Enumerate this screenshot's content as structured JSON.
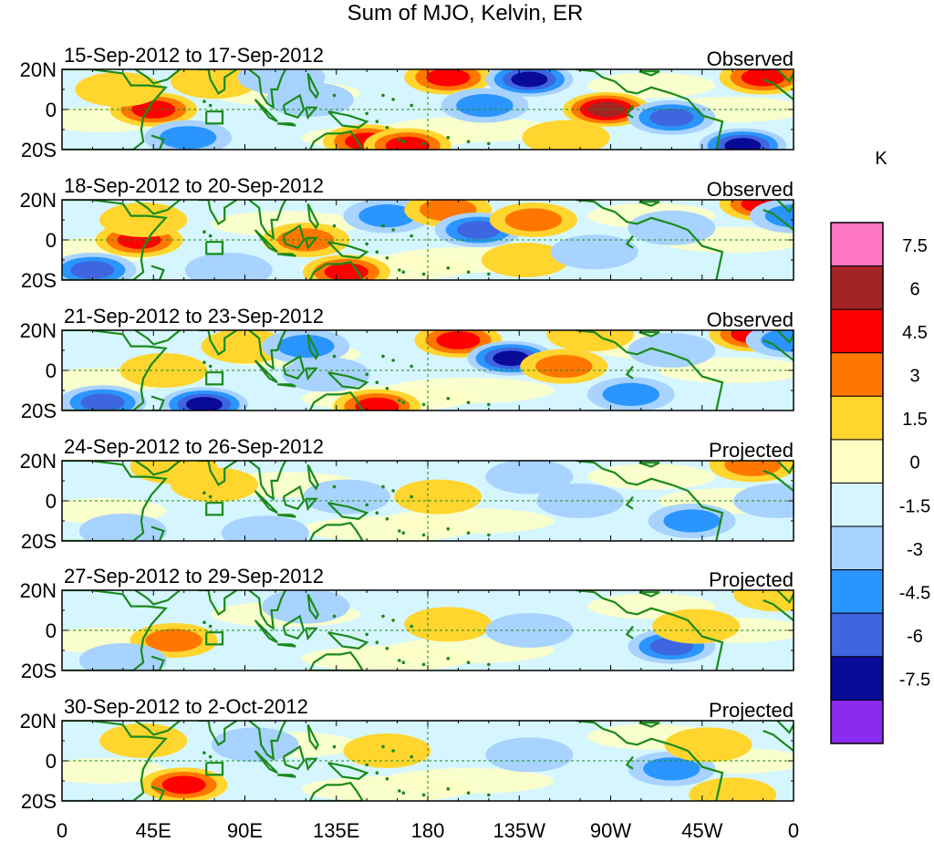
{
  "figure": {
    "title": "Sum of MJO, Kelvin, ER",
    "variable_unit": "K"
  },
  "panels": [
    {
      "date_range": "15-Sep-2012 to 17-Sep-2012",
      "status": "Observed"
    },
    {
      "date_range": "18-Sep-2012 to 20-Sep-2012",
      "status": "Observed"
    },
    {
      "date_range": "21-Sep-2012 to 23-Sep-2012",
      "status": "Observed"
    },
    {
      "date_range": "24-Sep-2012 to 26-Sep-2012",
      "status": "Projected"
    },
    {
      "date_range": "27-Sep-2012 to 29-Sep-2012",
      "status": "Projected"
    },
    {
      "date_range": "30-Sep-2012 to 2-Oct-2012",
      "status": "Projected"
    }
  ],
  "y_tick_labels": [
    "20N",
    "0",
    "20S"
  ],
  "x_tick_labels": [
    "0",
    "45E",
    "90E",
    "135E",
    "180",
    "135W",
    "90W",
    "45W",
    "0"
  ],
  "colorbar": {
    "unit": "K",
    "labels": [
      "7.5",
      "6",
      "4.5",
      "3",
      "1.5",
      "0",
      "-1.5",
      "-3",
      "-4.5",
      "-6",
      "-7.5"
    ],
    "colors": [
      "#ff77c4",
      "#a32424",
      "#ff0000",
      "#ff7700",
      "#ffd52e",
      "#ffffc4",
      "#d6f6ff",
      "#a8d3ff",
      "#2b95ff",
      "#3d66e0",
      "#0a0a99",
      "#8a2bf0"
    ]
  },
  "land_color": "#1a8a1a",
  "anomalies": [
    [
      {
        "lon": 45,
        "lat": 0,
        "v": 5.5
      },
      {
        "lon": 28,
        "lat": 10,
        "v": 2.5
      },
      {
        "lon": 75,
        "lat": 14,
        "v": 2.5
      },
      {
        "lon": 62,
        "lat": -14,
        "v": -3.5
      },
      {
        "lon": 108,
        "lat": 16,
        "v": -2.5
      },
      {
        "lon": 150,
        "lat": -16,
        "v": 5.5
      },
      {
        "lon": 170,
        "lat": -18,
        "v": 5.5
      },
      {
        "lon": 190,
        "lat": 16,
        "v": 4.5
      },
      {
        "lon": 230,
        "lat": 15,
        "v": -7.0
      },
      {
        "lon": 208,
        "lat": 2,
        "v": -3
      },
      {
        "lon": 268,
        "lat": 0,
        "v": 6
      },
      {
        "lon": 300,
        "lat": -4,
        "v": -4.5
      },
      {
        "lon": 335,
        "lat": -18,
        "v": -6
      },
      {
        "lon": 345,
        "lat": 16,
        "v": 4.5
      },
      {
        "lon": 122,
        "lat": 5,
        "v": -2
      },
      {
        "lon": 248,
        "lat": -14,
        "v": 2.5
      }
    ],
    [
      {
        "lon": 38,
        "lat": 0,
        "v": 4.5
      },
      {
        "lon": 15,
        "lat": -15,
        "v": -4.5
      },
      {
        "lon": 40,
        "lat": 10,
        "v": 2.5
      },
      {
        "lon": 120,
        "lat": 0,
        "v": 3
      },
      {
        "lon": 140,
        "lat": -16,
        "v": 5.5
      },
      {
        "lon": 160,
        "lat": 12,
        "v": -3
      },
      {
        "lon": 190,
        "lat": 15,
        "v": 4
      },
      {
        "lon": 205,
        "lat": 5,
        "v": -5
      },
      {
        "lon": 232,
        "lat": 10,
        "v": 3.5
      },
      {
        "lon": 228,
        "lat": -10,
        "v": 2.5
      },
      {
        "lon": 262,
        "lat": -6,
        "v": -2.5
      },
      {
        "lon": 345,
        "lat": 18,
        "v": 5.5
      },
      {
        "lon": 360,
        "lat": 12,
        "v": -3.5
      },
      {
        "lon": 300,
        "lat": 6,
        "v": -2
      },
      {
        "lon": 82,
        "lat": -15,
        "v": -2
      }
    ],
    [
      {
        "lon": 20,
        "lat": -16,
        "v": -4.5
      },
      {
        "lon": 50,
        "lat": 0,
        "v": 2.5
      },
      {
        "lon": 70,
        "lat": -17,
        "v": -6.5
      },
      {
        "lon": 90,
        "lat": 12,
        "v": 2.5
      },
      {
        "lon": 120,
        "lat": 12,
        "v": -4
      },
      {
        "lon": 155,
        "lat": -18,
        "v": 4.5
      },
      {
        "lon": 195,
        "lat": 15,
        "v": 4.5
      },
      {
        "lon": 221,
        "lat": 6,
        "v": -7
      },
      {
        "lon": 247,
        "lat": 2,
        "v": 4
      },
      {
        "lon": 260,
        "lat": 18,
        "v": 2.5
      },
      {
        "lon": 280,
        "lat": -12,
        "v": -3
      },
      {
        "lon": 340,
        "lat": 18,
        "v": 5
      },
      {
        "lon": 358,
        "lat": 15,
        "v": -3.5
      },
      {
        "lon": 300,
        "lat": 10,
        "v": -2
      },
      {
        "lon": 130,
        "lat": -2,
        "v": -2
      }
    ],
    [
      {
        "lon": 30,
        "lat": -15,
        "v": -2
      },
      {
        "lon": 55,
        "lat": 17,
        "v": 2.5
      },
      {
        "lon": 100,
        "lat": -16,
        "v": -2
      },
      {
        "lon": 140,
        "lat": 2,
        "v": -1.8
      },
      {
        "lon": 185,
        "lat": 2,
        "v": 2
      },
      {
        "lon": 230,
        "lat": 12,
        "v": -1.8
      },
      {
        "lon": 255,
        "lat": 0,
        "v": -1.8
      },
      {
        "lon": 310,
        "lat": -10,
        "v": -3
      },
      {
        "lon": 340,
        "lat": 18,
        "v": 4
      },
      {
        "lon": 352,
        "lat": 0,
        "v": -1.8
      },
      {
        "lon": 75,
        "lat": 8,
        "v": 1.6
      }
    ],
    [
      {
        "lon": 55,
        "lat": -5,
        "v": 3
      },
      {
        "lon": 30,
        "lat": -15,
        "v": -1.8
      },
      {
        "lon": 190,
        "lat": 3,
        "v": 2
      },
      {
        "lon": 230,
        "lat": 0,
        "v": -1.8
      },
      {
        "lon": 300,
        "lat": -8,
        "v": -4.5
      },
      {
        "lon": 312,
        "lat": 2,
        "v": 2.8
      },
      {
        "lon": 120,
        "lat": 12,
        "v": -1.8
      },
      {
        "lon": 352,
        "lat": 18,
        "v": 1.6
      }
    ],
    [
      {
        "lon": 60,
        "lat": -12,
        "v": 4.5
      },
      {
        "lon": 95,
        "lat": 8,
        "v": -1.8
      },
      {
        "lon": 160,
        "lat": 5,
        "v": 1.6
      },
      {
        "lon": 230,
        "lat": 3,
        "v": -1.8
      },
      {
        "lon": 300,
        "lat": -4,
        "v": -3
      },
      {
        "lon": 318,
        "lat": 8,
        "v": 2.5
      },
      {
        "lon": 330,
        "lat": -17,
        "v": 2.8
      },
      {
        "lon": 40,
        "lat": 10,
        "v": 1.6
      }
    ]
  ]
}
